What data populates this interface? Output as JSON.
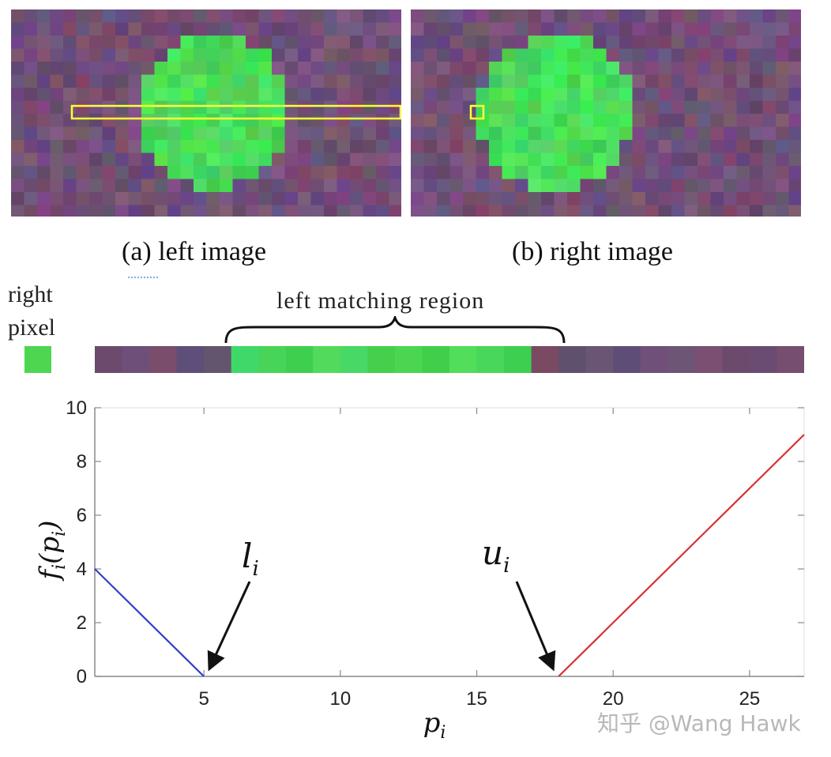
{
  "captions": {
    "left": "(a) left image",
    "right": "(b) right image"
  },
  "labels": {
    "right_pixel_line1": "right",
    "right_pixel_line2": "pixel",
    "matching_region": "left matching region"
  },
  "colors": {
    "background_purple": "#6e4e76",
    "disk_green": "#4ed650",
    "highlight_yellow": "#ffff33",
    "line_blue": "#3040c8",
    "line_red": "#d83030",
    "axis_gray": "#888888",
    "grid_gray": "#e4e4e4"
  },
  "strip": {
    "cells": [
      "#6b4a6e",
      "#6e4f7a",
      "#7a4d6c",
      "#5d4e7a",
      "#63556d",
      "#3fd96a",
      "#48d458",
      "#3fcf4f",
      "#52db5a",
      "#48d866",
      "#44d04c",
      "#4bd652",
      "#41cf4b",
      "#52dd5a",
      "#48d75a",
      "#3dcf4f",
      "#7a4a62",
      "#5f516e",
      "#6a5674",
      "#5e4d76",
      "#705078",
      "#6d5576",
      "#7a4f72",
      "#6c4a6e",
      "#6a4c72",
      "#754e70"
    ]
  },
  "chart_data": {
    "type": "line",
    "xlabel": "p_i",
    "ylabel": "f_i(p_i)",
    "xlim": [
      1,
      27
    ],
    "ylim": [
      0,
      10
    ],
    "xticks": [
      5,
      10,
      15,
      20,
      25
    ],
    "yticks": [
      0,
      2,
      4,
      6,
      8,
      10
    ],
    "grid": false,
    "series": [
      {
        "color": "#3040c8",
        "x": [
          1,
          5
        ],
        "y": [
          4,
          0
        ]
      },
      {
        "color": "#d83030",
        "x": [
          18,
          27
        ],
        "y": [
          0,
          9
        ]
      }
    ],
    "annotations": [
      {
        "text": "l",
        "subscript": "i",
        "x": 5,
        "y": 0
      },
      {
        "text": "u",
        "subscript": "i",
        "x": 18,
        "y": 0
      }
    ]
  },
  "watermark": "知乎 @Wang Hawk"
}
